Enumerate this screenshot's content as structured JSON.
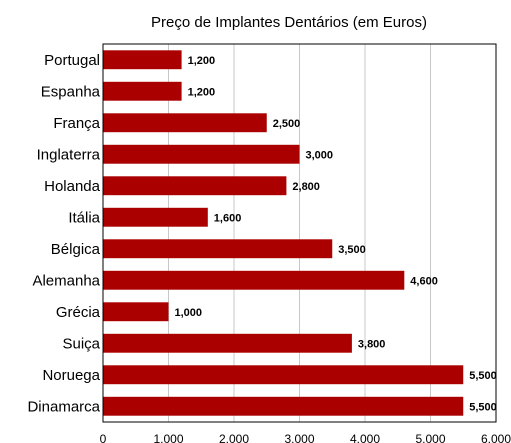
{
  "chart_data": {
    "type": "bar",
    "orientation": "horizontal",
    "title": "Preço de Implantes Dentários (em Euros)",
    "categories": [
      "Portugal",
      "Espanha",
      "França",
      "Inglaterra",
      "Holanda",
      "Itália",
      "Bélgica",
      "Alemanha",
      "Grécia",
      "Suiça",
      "Noruega",
      "Dinamarca"
    ],
    "values": [
      1200,
      1200,
      2500,
      3000,
      2800,
      1600,
      3500,
      4600,
      1000,
      3800,
      5500,
      5500
    ],
    "value_labels": [
      "1,200",
      "1,200",
      "2,500",
      "3,000",
      "2,800",
      "1,600",
      "3,500",
      "4,600",
      "1,000",
      "3,800",
      "5,500",
      "5,500"
    ],
    "xlim": [
      0,
      6000
    ],
    "x_ticks": [
      0,
      1000,
      2000,
      3000,
      4000,
      5000,
      6000
    ],
    "x_tick_labels": [
      "0",
      "1,000",
      "2,000",
      "3,000",
      "4,000",
      "5,000",
      "6,000"
    ],
    "grid": true,
    "bar_color": "#aa0000",
    "legend": "none"
  }
}
